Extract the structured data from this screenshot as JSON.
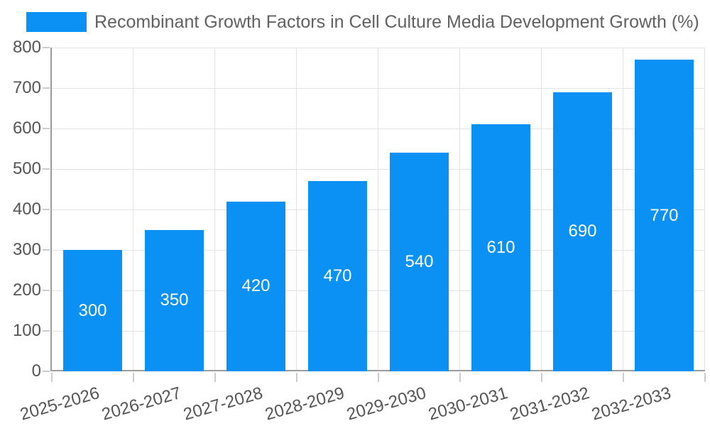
{
  "chart_data": {
    "type": "bar",
    "title": "Recombinant Growth Factors in Cell Culture Media Development Growth (%)",
    "legend_label": "Recombinant Growth Factors in Cell Culture Media Development Growth (%)",
    "legend_position": "top-left",
    "categories": [
      "2025-2026",
      "2026-2027",
      "2027-2028",
      "2028-2029",
      "2029-2030",
      "2030-2031",
      "2031-2032",
      "2032-2033"
    ],
    "values": [
      300,
      350,
      420,
      470,
      540,
      610,
      690,
      770
    ],
    "value_labels": [
      "300",
      "350",
      "420",
      "470",
      "540",
      "610",
      "690",
      "770"
    ],
    "ytick_labels": [
      "0",
      "100",
      "200",
      "300",
      "400",
      "500",
      "600",
      "700",
      "800"
    ],
    "xlabel": "",
    "ylabel": "",
    "ylim": [
      0,
      800
    ],
    "ytick_step": 100,
    "grid": true
  },
  "colors": {
    "bar": "#0b90f4",
    "value_label": "#ffffff",
    "grid": "#e3e3e3",
    "axis": "#9b9b9b",
    "tick": "#cccccc",
    "tick_label": "#555555",
    "title": "#616161",
    "background": "#ffffff"
  }
}
